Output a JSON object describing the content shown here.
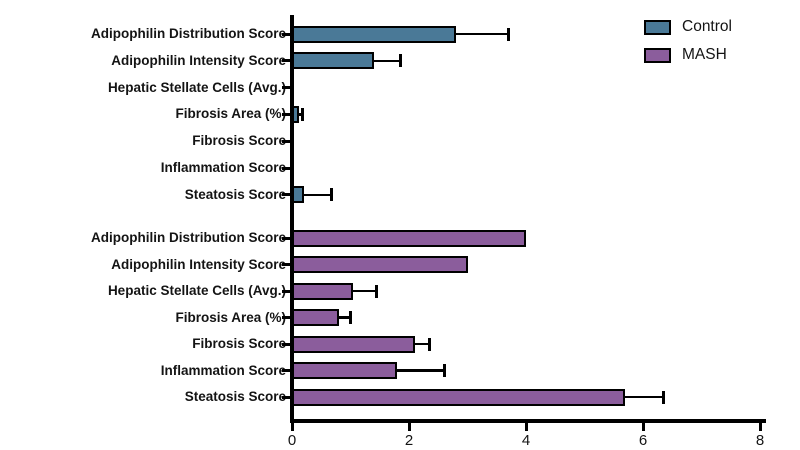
{
  "chart_data": {
    "type": "bar",
    "orientation": "horizontal",
    "title": "",
    "xlabel": "",
    "ylabel": "",
    "xlim": [
      0,
      8
    ],
    "x_ticks": [
      0,
      2,
      4,
      6,
      8
    ],
    "grid": false,
    "legend_position": "top-right",
    "error_bars": "positive SD with caps",
    "categories": [
      "Adipophilin Distribution Score",
      "Adipophilin Intensity Score",
      "Hepatic Stellate Cells (Avg.)",
      "Fibrosis Area (%)",
      "Fibrosis Score",
      "Inflammation Score",
      "Steatosis Score"
    ],
    "series": [
      {
        "name": "Control",
        "color": "#4A7997",
        "values": [
          2.8,
          1.4,
          0,
          0.12,
          0,
          0,
          0.2
        ],
        "errors": [
          0.9,
          0.45,
          0,
          0.06,
          0,
          0,
          0.48
        ]
      },
      {
        "name": "MASH",
        "color": "#8B5D9C",
        "values": [
          4.0,
          3.0,
          1.05,
          0.8,
          2.1,
          1.8,
          5.7
        ],
        "errors": [
          0,
          0,
          0.4,
          0.2,
          0.25,
          0.8,
          0.65
        ]
      }
    ]
  },
  "legend": {
    "items": [
      {
        "label": "Control",
        "color": "#4A7997"
      },
      {
        "label": "MASH",
        "color": "#8B5D9C"
      }
    ]
  },
  "axis": {
    "tick_labels": [
      "0",
      "2",
      "4",
      "6",
      "8"
    ]
  }
}
